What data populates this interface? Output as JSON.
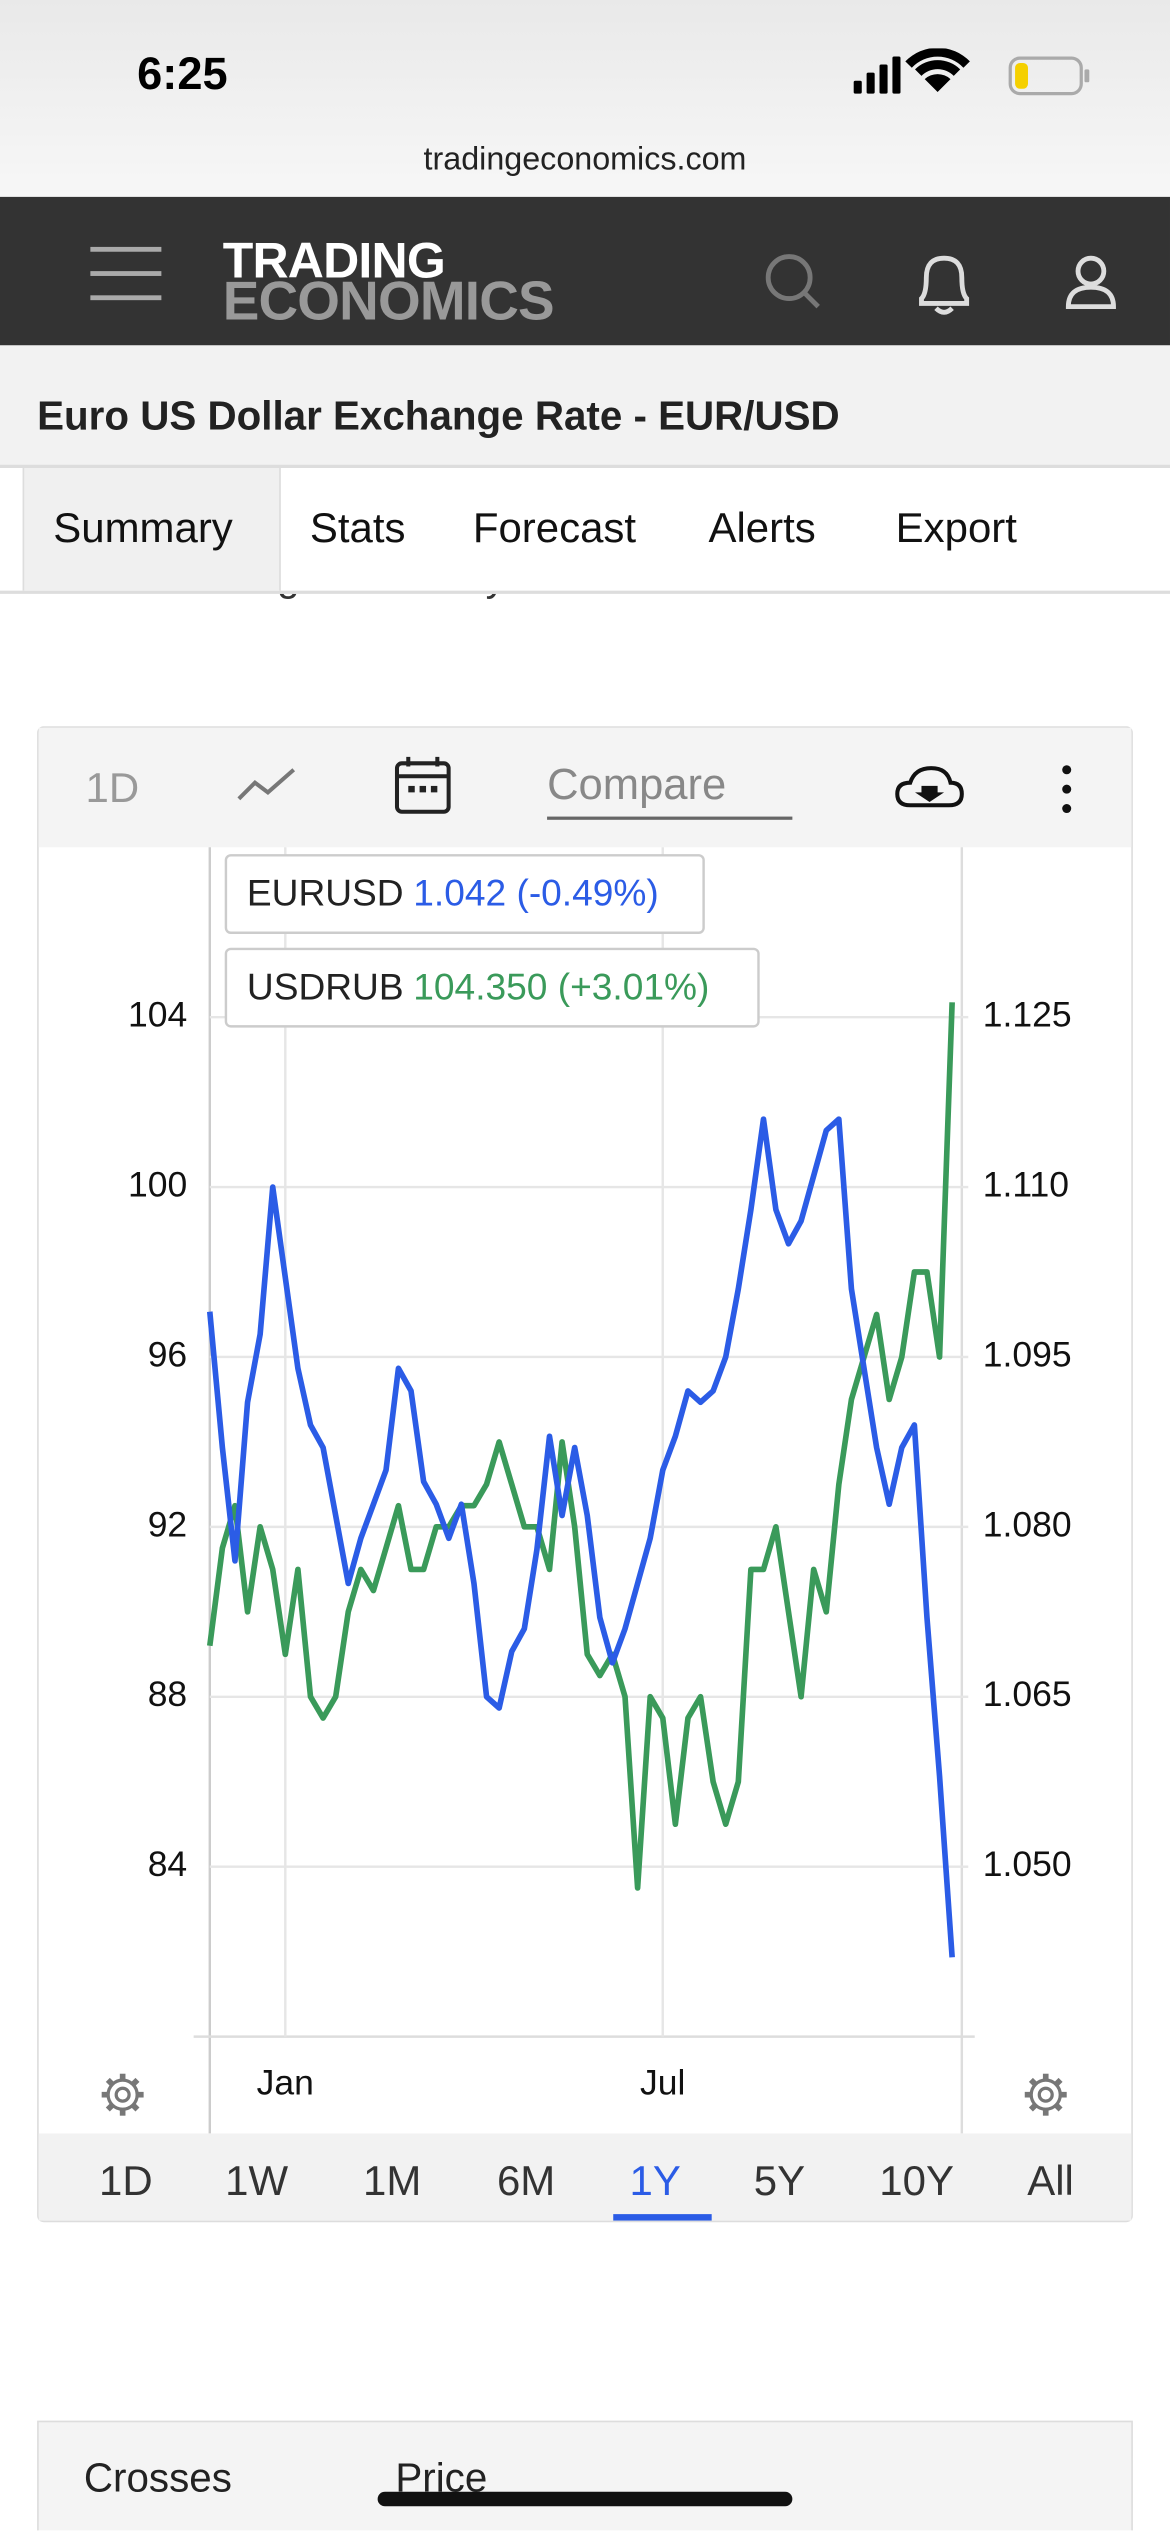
{
  "status_bar": {
    "time": "6:25"
  },
  "browser": {
    "url": "tradingeconomics.com"
  },
  "header": {
    "brand_top": "TRADING",
    "brand_bottom": "ECONOMICS"
  },
  "page": {
    "title": "Euro US Dollar Exchange Rate - EUR/USD",
    "intro_fragment": "Ukrainian targets recently."
  },
  "tabs": [
    "Summary",
    "Stats",
    "Forecast",
    "Alerts",
    "Export"
  ],
  "active_tab": "Summary",
  "chart_toolbar": {
    "period": "1D",
    "compare": "Compare"
  },
  "chart_data": {
    "type": "line",
    "categories": [
      null,
      null,
      null,
      null,
      null,
      null,
      "Jan",
      null,
      null,
      null,
      null,
      null,
      null,
      null,
      null,
      null,
      null,
      null,
      null,
      null,
      null,
      null,
      null,
      null,
      null,
      null,
      null,
      null,
      null,
      null,
      null,
      null,
      null,
      null,
      null,
      null,
      "Jul",
      null,
      null,
      null,
      null,
      null,
      null,
      null,
      null,
      null,
      null,
      null,
      null,
      null,
      null,
      null,
      null,
      null,
      null,
      null,
      null,
      null,
      null,
      null
    ],
    "ylim": [
      80,
      108
    ],
    "yticks": [
      84,
      88,
      92,
      96,
      100,
      104
    ],
    "y2lim": [
      1.035,
      1.14
    ],
    "y2ticks": [
      {
        "value": 1.05,
        "label": "1.050"
      },
      1.065,
      {
        "value": 1.08,
        "label": "1.080"
      },
      1.095,
      {
        "value": 1.11,
        "label": "1.110"
      },
      1.125
    ],
    "grid": true,
    "series": [
      {
        "name": "EURUSD",
        "legend_value": "1.042 (-0.49%)",
        "color": "#2b5ce6",
        "axis": "y2",
        "values": [
          1.099,
          1.087,
          1.077,
          1.091,
          1.097,
          1.11,
          1.102,
          1.094,
          1.089,
          1.087,
          1.081,
          1.075,
          1.079,
          1.082,
          1.085,
          1.094,
          1.092,
          1.084,
          1.082,
          1.079,
          1.082,
          1.075,
          1.065,
          1.064,
          1.069,
          1.071,
          1.078,
          1.088,
          1.081,
          1.087,
          1.081,
          1.072,
          1.068,
          1.071,
          1.075,
          1.079,
          1.085,
          1.088,
          1.092,
          1.091,
          1.092,
          1.095,
          1.101,
          1.108,
          1.116,
          1.108,
          1.105,
          1.107,
          1.111,
          1.115,
          1.116,
          1.101,
          1.094,
          1.087,
          1.082,
          1.087,
          1.089,
          1.072,
          1.058,
          1.042
        ]
      },
      {
        "name": "USDRUB",
        "legend_value": "104.350 (+3.01%)",
        "color": "#3a9a5a",
        "axis": "y",
        "values": [
          89.2,
          91.5,
          92.5,
          90,
          92,
          91,
          89,
          91,
          88,
          87.5,
          88,
          90,
          91,
          90.5,
          91.5,
          92.5,
          91,
          91,
          92,
          92,
          92.5,
          92.5,
          93,
          94,
          93,
          92,
          92,
          91,
          94,
          92,
          89,
          88.5,
          89,
          88,
          83.5,
          88,
          87.5,
          85,
          87.5,
          88,
          86,
          85,
          86,
          91,
          91,
          92,
          90,
          88,
          91,
          90,
          93,
          95,
          96,
          97,
          95,
          96,
          98,
          98,
          96,
          104.35
        ]
      }
    ]
  },
  "range_buttons": [
    "1D",
    "1W",
    "1M",
    "6M",
    "1Y",
    "5Y",
    "10Y",
    "All"
  ],
  "range_selected": "1Y",
  "bottom_tabs": [
    "Crosses",
    "Price"
  ]
}
